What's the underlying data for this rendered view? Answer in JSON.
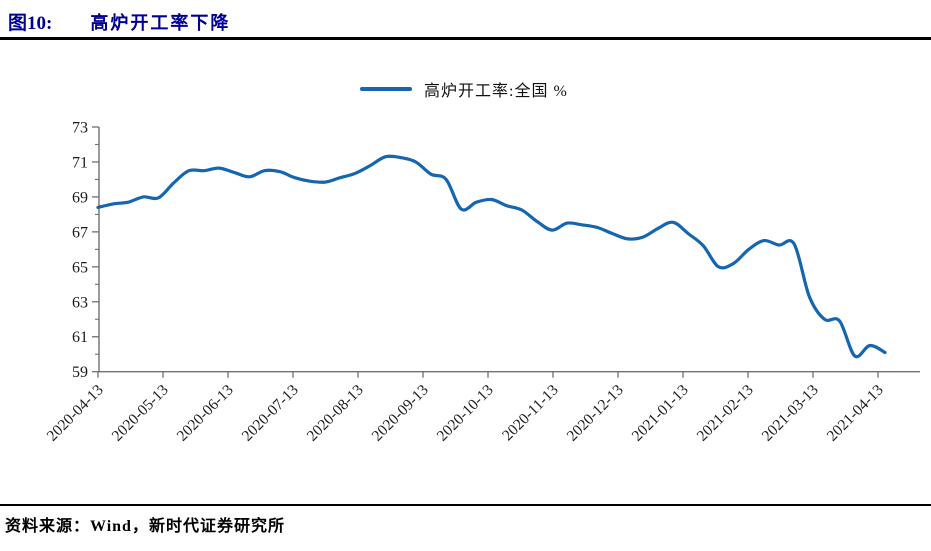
{
  "page": {
    "figure_label": "图10:",
    "figure_title": "高炉开工率下降",
    "source_text": "资料来源：Wind，新时代证券研究所"
  },
  "legend": {
    "series_label": "高炉开工率:全国 %"
  },
  "colors": {
    "series_line": "#1565B0",
    "title_navy": "#000090",
    "axis_gray": "#707070",
    "label_text": "#1a1a1a",
    "rule_black": "#000000"
  },
  "chart_data": {
    "type": "line",
    "title": "高炉开工率下降",
    "series_name": "高炉开工率:全国 %",
    "xlabel": "",
    "ylabel": "",
    "unit": "%",
    "grid": false,
    "legend_position": "top-center",
    "ylim": [
      59,
      73
    ],
    "y_ticks": [
      59,
      61,
      63,
      65,
      67,
      69,
      71,
      73
    ],
    "x_tick_labels": [
      "2020-04-13",
      "2020-05-13",
      "2020-06-13",
      "2020-07-13",
      "2020-08-13",
      "2020-09-13",
      "2020-10-13",
      "2020-11-13",
      "2020-12-13",
      "2021-01-13",
      "2021-02-13",
      "2021-03-13",
      "2021-04-13"
    ],
    "dates": [
      "2020-04-13",
      "2020-04-20",
      "2020-04-27",
      "2020-05-04",
      "2020-05-11",
      "2020-05-18",
      "2020-05-25",
      "2020-06-01",
      "2020-06-08",
      "2020-06-15",
      "2020-06-22",
      "2020-06-29",
      "2020-07-06",
      "2020-07-13",
      "2020-07-20",
      "2020-07-27",
      "2020-08-03",
      "2020-08-10",
      "2020-08-17",
      "2020-08-24",
      "2020-08-31",
      "2020-09-07",
      "2020-09-14",
      "2020-09-21",
      "2020-09-28",
      "2020-10-05",
      "2020-10-12",
      "2020-10-19",
      "2020-10-26",
      "2020-11-02",
      "2020-11-09",
      "2020-11-16",
      "2020-11-23",
      "2020-11-30",
      "2020-12-07",
      "2020-12-14",
      "2020-12-21",
      "2020-12-28",
      "2021-01-04",
      "2021-01-11",
      "2021-01-18",
      "2021-01-25",
      "2021-02-01",
      "2021-02-08",
      "2021-02-15",
      "2021-02-22",
      "2021-03-01",
      "2021-03-08",
      "2021-03-15",
      "2021-03-22",
      "2021-03-29",
      "2021-04-05",
      "2021-04-12"
    ],
    "values": [
      68.4,
      68.6,
      68.7,
      69.0,
      68.95,
      69.8,
      70.5,
      70.5,
      70.65,
      70.4,
      70.15,
      70.5,
      70.45,
      70.1,
      69.9,
      69.85,
      70.1,
      70.35,
      70.8,
      71.3,
      71.25,
      71.0,
      70.3,
      70.0,
      68.3,
      68.7,
      68.85,
      68.5,
      68.25,
      67.6,
      67.1,
      67.5,
      67.4,
      67.25,
      66.9,
      66.6,
      66.7,
      67.2,
      67.55,
      66.9,
      66.2,
      65.0,
      65.2,
      66.0,
      66.5,
      66.25,
      66.3,
      63.3,
      62.0,
      61.9,
      59.9,
      60.5,
      60.1
    ]
  }
}
